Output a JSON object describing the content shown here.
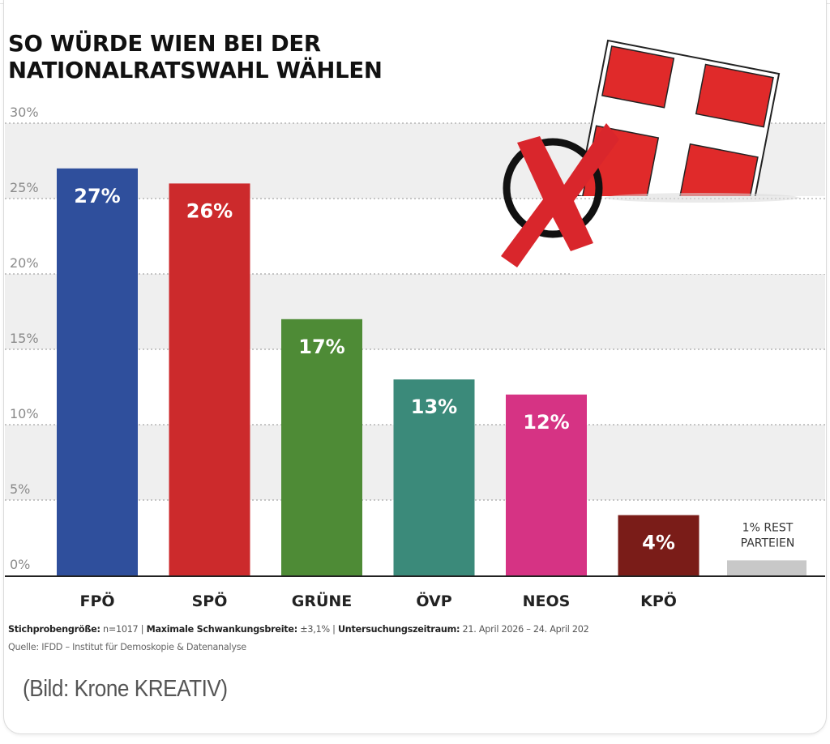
{
  "chart_data": {
    "type": "bar",
    "title": "SO WÜRDE WIEN BEI DER NATIONALRATSWAHL WÄHLEN",
    "title_lines": [
      "SO WÜRDE WIEN BEI DER",
      "NATIONALRATSWAHL WÄHLEN"
    ],
    "xlabel": "",
    "ylabel": "",
    "ylim": [
      0,
      30
    ],
    "yticks": [
      0,
      5,
      10,
      15,
      20,
      25,
      30
    ],
    "ytick_labels": [
      "0%",
      "5%",
      "10%",
      "15%",
      "20%",
      "25%",
      "30%"
    ],
    "grid": true,
    "categories": [
      "FPÖ",
      "SPÖ",
      "GRÜNE",
      "ÖVP",
      "NEOS",
      "KPÖ",
      ""
    ],
    "values": [
      27,
      26,
      17,
      13,
      12,
      4,
      1
    ],
    "data_labels": [
      "27%",
      "26%",
      "17%",
      "13%",
      "12%",
      "4%",
      "1% REST PARTEIEN"
    ],
    "rest_label_lines": [
      "1% REST",
      "PARTEIEN"
    ],
    "colors": [
      "#2f4f9c",
      "#cc2a2c",
      "#4e8b36",
      "#3b8a7a",
      "#d63384",
      "#7a1c18",
      "#c8c8c8"
    ],
    "legend": "none"
  },
  "footer": {
    "sample_label": "Stichprobengröße:",
    "sample_value": " n=1017 | ",
    "margin_label": "Maximale Schwankungsbreite:",
    "margin_value": " ±3,1% | ",
    "period_label": "Untersuchungszeitraum:",
    "period_value": " 21. April 2026 – 24. April 202",
    "source": "Quelle: IFDD – Institut für Demoskopie & Datenanalyse"
  },
  "caption": "(Bild: Krone KREATIV)",
  "illustration": {
    "icon": "ballot-box-vienna-flag-icon",
    "flag_color": "#e02a2a",
    "mark_color": "#d9262c"
  }
}
